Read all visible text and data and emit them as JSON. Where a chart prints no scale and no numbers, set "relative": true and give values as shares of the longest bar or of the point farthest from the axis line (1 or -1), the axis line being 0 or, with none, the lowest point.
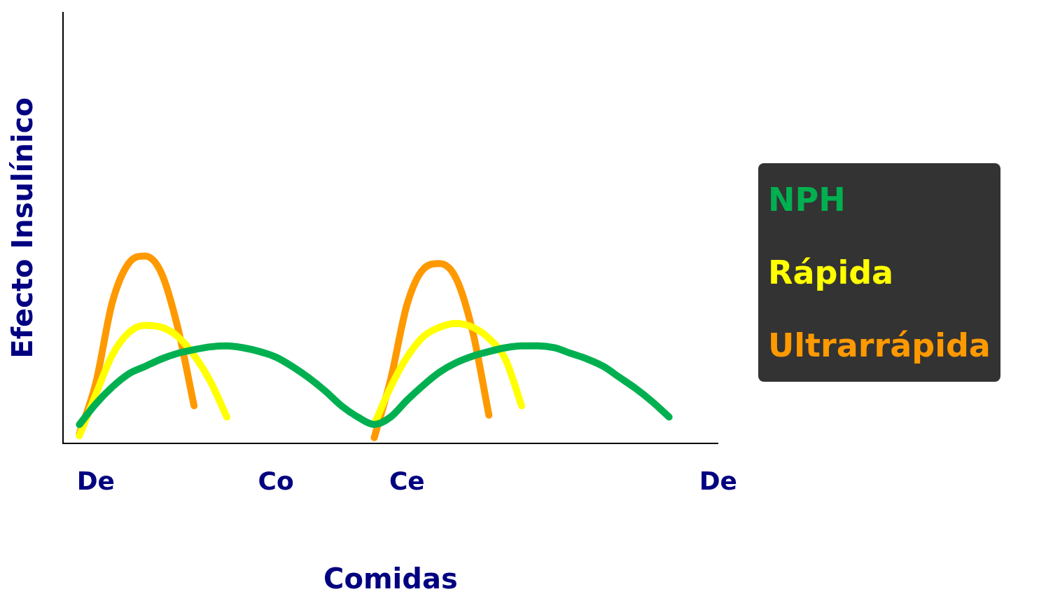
{
  "chart_data": {
    "type": "line",
    "relative": true,
    "xlabel": "Comidas",
    "ylabel": "Efecto Insulínico",
    "legend": "right",
    "marker": "none",
    "grid": false,
    "categories": [
      null,
      null,
      "De",
      null,
      null,
      null,
      null,
      null,
      null,
      null,
      null,
      null,
      null,
      "Co",
      null,
      null,
      null,
      null,
      null,
      null,
      null,
      "Ce",
      null,
      null,
      null,
      null,
      null,
      null,
      null,
      null,
      null,
      null,
      null,
      null,
      null,
      null,
      null,
      null,
      null,
      null,
      "De"
    ],
    "series": [
      {
        "name": "NPH",
        "color": "#00b050",
        "values": [
          null,
          0.1,
          0.21,
          0.3,
          0.37,
          0.41,
          0.45,
          0.48,
          0.5,
          0.515,
          0.52,
          0.51,
          0.49,
          0.46,
          0.41,
          0.35,
          0.28,
          0.2,
          0.14,
          0.1,
          0.14,
          0.23,
          0.31,
          0.38,
          0.43,
          0.465,
          0.49,
          0.51,
          0.52,
          0.52,
          0.51,
          0.48,
          0.45,
          0.41,
          0.35,
          0.29,
          0.22,
          0.14,
          null,
          null,
          null
        ]
      },
      {
        "name": "Rápida",
        "color": "#ffff00",
        "values": [
          null,
          0.04,
          0.26,
          0.47,
          0.59,
          0.63,
          0.62,
          0.57,
          0.47,
          0.33,
          0.14,
          null,
          null,
          null,
          null,
          null,
          null,
          null,
          null,
          0.1,
          0.3,
          0.46,
          0.57,
          0.62,
          0.64,
          0.62,
          0.56,
          0.45,
          0.2,
          null,
          null,
          null,
          null,
          null,
          null,
          null,
          null,
          null,
          null,
          null,
          null
        ]
      },
      {
        "name": "Ultrarrápida",
        "color": "#ff9900",
        "values": [
          null,
          0.05,
          0.32,
          0.75,
          0.96,
          1,
          0.91,
          0.62,
          0.2,
          null,
          null,
          null,
          null,
          null,
          null,
          null,
          null,
          null,
          null,
          0.03,
          0.34,
          0.74,
          0.93,
          0.96,
          0.88,
          0.6,
          0.15,
          null,
          null,
          null,
          null,
          null,
          null,
          null,
          null,
          null,
          null,
          null,
          null,
          null,
          null
        ]
      }
    ]
  }
}
